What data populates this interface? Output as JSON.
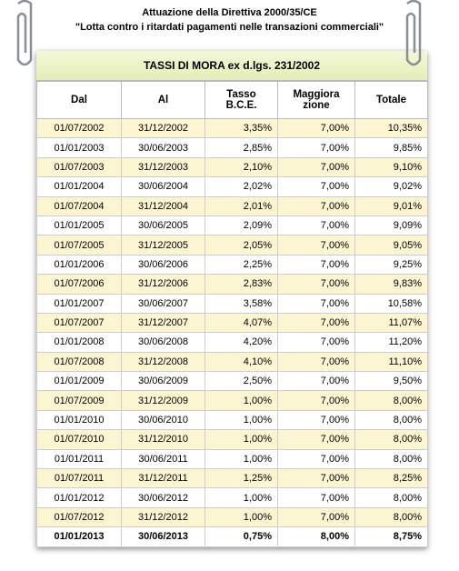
{
  "header": {
    "line1": "Attuazione della Direttiva 2000/35/CE",
    "line2": "\"Lotta contro i ritardati pagamenti nelle transazioni commerciali\""
  },
  "table": {
    "title": "TASSI DI MORA ex d.lgs. 231/2002",
    "columns": [
      [
        "Dal"
      ],
      [
        "Al"
      ],
      [
        "Tasso",
        "B.C.E."
      ],
      [
        "Maggiora",
        "zione"
      ],
      [
        "Totale"
      ]
    ],
    "rows": [
      [
        "01/07/2002",
        "31/12/2002",
        "3,35%",
        "7,00%",
        "10,35%"
      ],
      [
        "01/01/2003",
        "30/06/2003",
        "2,85%",
        "7,00%",
        "9,85%"
      ],
      [
        "01/07/2003",
        "31/12/2003",
        "2,10%",
        "7,00%",
        "9,10%"
      ],
      [
        "01/01/2004",
        "30/06/2004",
        "2,02%",
        "7,00%",
        "9,02%"
      ],
      [
        "01/07/2004",
        "31/12/2004",
        "2,01%",
        "7,00%",
        "9,01%"
      ],
      [
        "01/01/2005",
        "30/06/2005",
        "2,09%",
        "7,00%",
        "9,09%"
      ],
      [
        "01/07/2005",
        "31/12/2005",
        "2,05%",
        "7,00%",
        "9,05%"
      ],
      [
        "01/01/2006",
        "30/06/2006",
        "2,25%",
        "7,00%",
        "9,25%"
      ],
      [
        "01/07/2006",
        "31/12/2006",
        "2,83%",
        "7,00%",
        "9,83%"
      ],
      [
        "01/01/2007",
        "30/06/2007",
        "3,58%",
        "7,00%",
        "10,58%"
      ],
      [
        "01/07/2007",
        "31/12/2007",
        "4,07%",
        "7,00%",
        "11,07%"
      ],
      [
        "01/01/2008",
        "30/06/2008",
        "4,20%",
        "7,00%",
        "11,20%"
      ],
      [
        "01/07/2008",
        "31/12/2008",
        "4,10%",
        "7,00%",
        "11,10%"
      ],
      [
        "01/01/2009",
        "30/06/2009",
        "2,50%",
        "7,00%",
        "9,50%"
      ],
      [
        "01/07/2009",
        "31/12/2009",
        "1,00%",
        "7,00%",
        "8,00%"
      ],
      [
        "01/01/2010",
        "30/06/2010",
        "1,00%",
        "7,00%",
        "8,00%"
      ],
      [
        "01/07/2010",
        "31/12/2010",
        "1,00%",
        "7,00%",
        "8,00%"
      ],
      [
        "01/01/2011",
        "30/06/2011",
        "1,00%",
        "7,00%",
        "8,00%"
      ],
      [
        "01/07/2011",
        "31/12/2011",
        "1,25%",
        "7,00%",
        "8,25%"
      ],
      [
        "01/01/2012",
        "30/06/2012",
        "1,00%",
        "7,00%",
        "8,00%"
      ],
      [
        "01/07/2012",
        "31/12/2012",
        "1,00%",
        "7,00%",
        "8,00%"
      ],
      [
        "01/01/2013",
        "30/06/2013",
        "0,75%",
        "8,00%",
        "8,75%"
      ]
    ]
  }
}
